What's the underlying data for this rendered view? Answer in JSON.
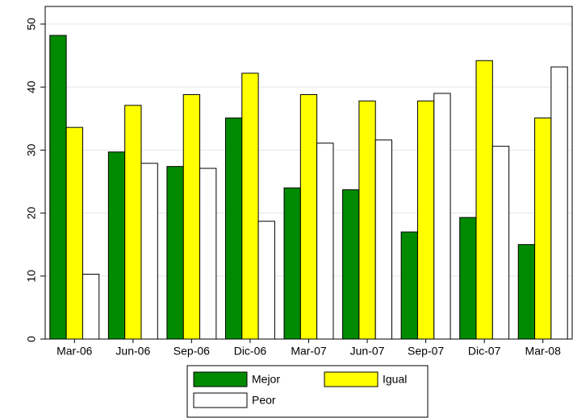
{
  "chart_data": {
    "type": "bar",
    "categories": [
      "Mar-06",
      "Jun-06",
      "Sep-06",
      "Dic-06",
      "Mar-07",
      "Jun-07",
      "Sep-07",
      "Dic-07",
      "Mar-08"
    ],
    "series": [
      {
        "name": "Mejor",
        "color": "#008a00",
        "values": [
          48.2,
          29.7,
          27.4,
          35.1,
          24.0,
          23.7,
          17.0,
          19.3,
          15.0
        ]
      },
      {
        "name": "Igual",
        "color": "#ffff00",
        "values": [
          33.6,
          37.1,
          38.8,
          42.2,
          38.8,
          37.8,
          37.8,
          44.2,
          35.1
        ]
      },
      {
        "name": "Peor",
        "color": "#ffffff",
        "values": [
          10.3,
          27.9,
          27.1,
          18.7,
          31.1,
          31.6,
          39.0,
          30.6,
          43.2
        ]
      }
    ],
    "ylim": [
      0,
      52.8
    ],
    "yticks": [
      0,
      10,
      20,
      30,
      40,
      50
    ],
    "grid": true
  }
}
